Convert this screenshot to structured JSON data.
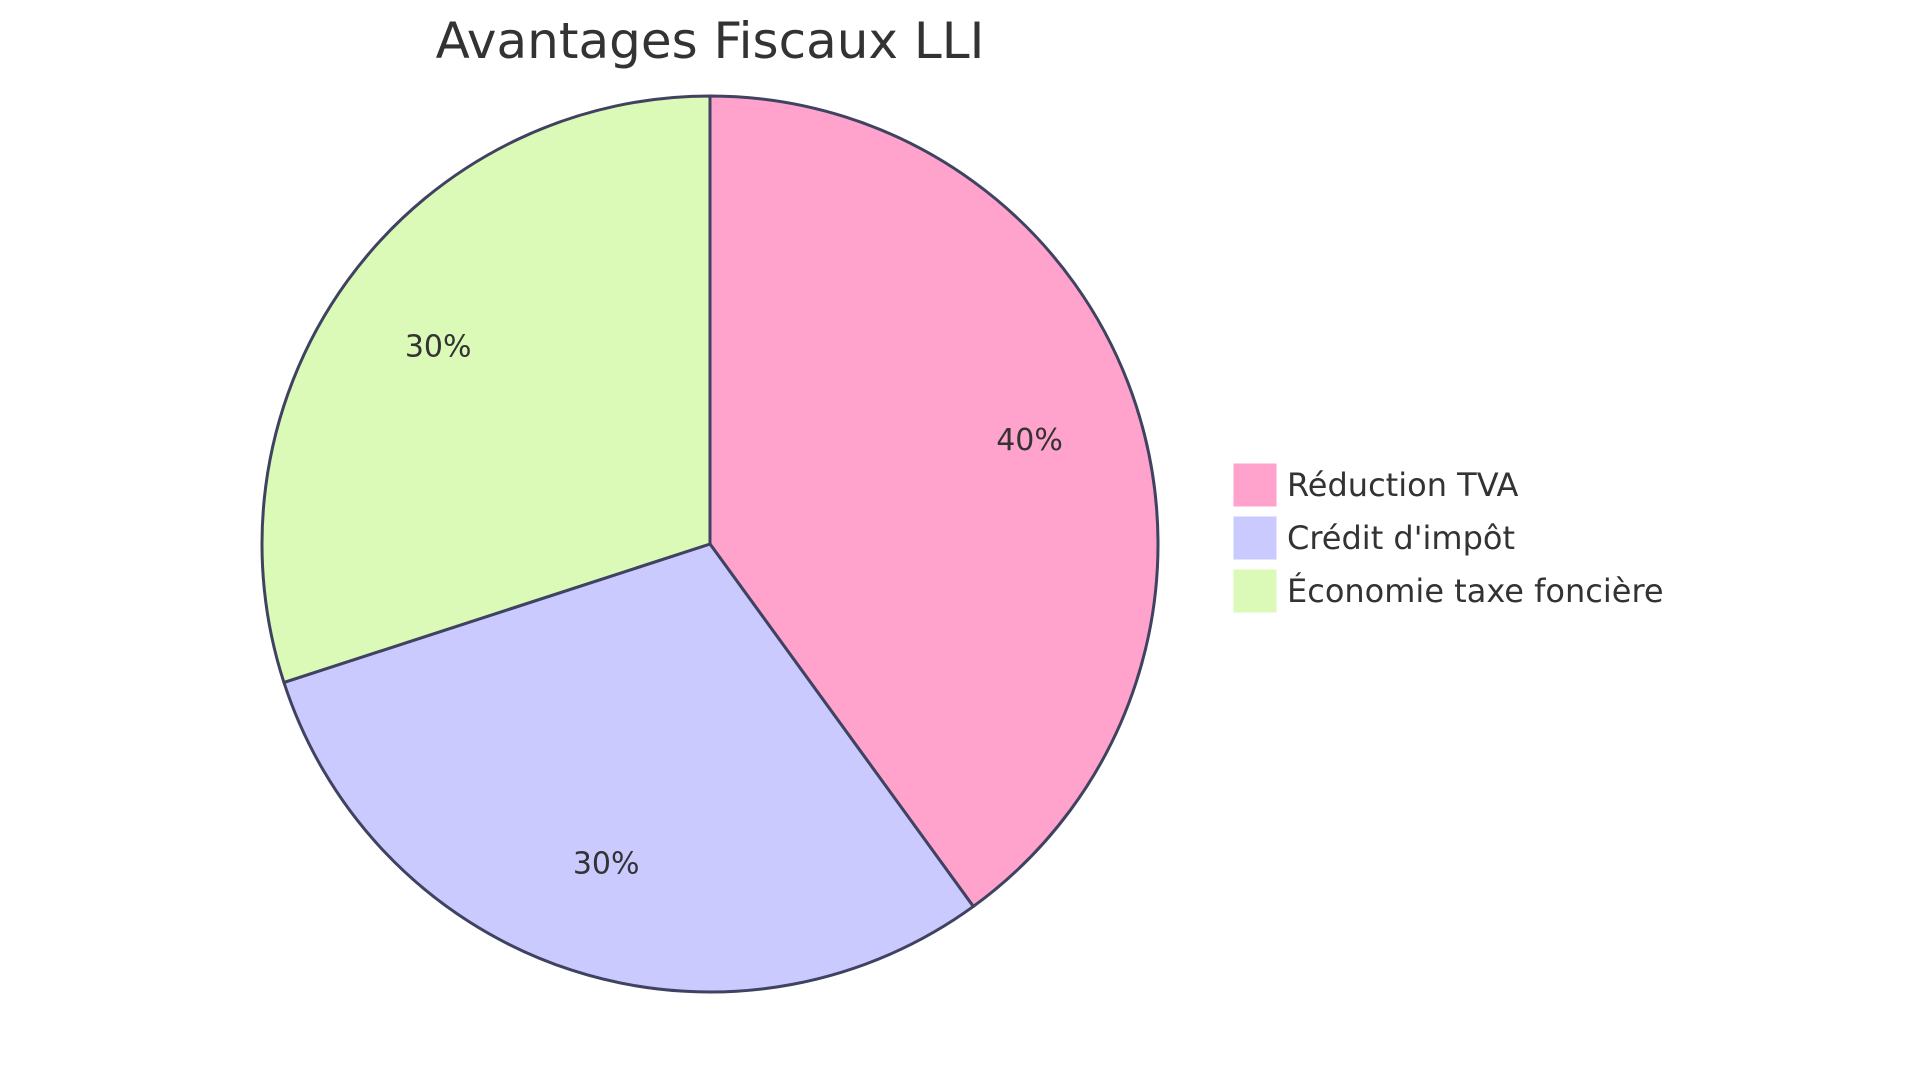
{
  "chart_data": {
    "type": "pie",
    "title": "Avantages Fiscaux LLI",
    "slices": [
      {
        "label": "Réduction TVA",
        "value": 40,
        "display": "40%",
        "color": "#FFA3CC"
      },
      {
        "label": "Crédit d'impôt",
        "value": 30,
        "display": "30%",
        "color": "#CACAFF"
      },
      {
        "label": "Économie taxe foncière",
        "value": 30,
        "display": "30%",
        "color": "#DBFAB8"
      }
    ],
    "legend_position": "right",
    "stroke_color": "#3F4260"
  }
}
